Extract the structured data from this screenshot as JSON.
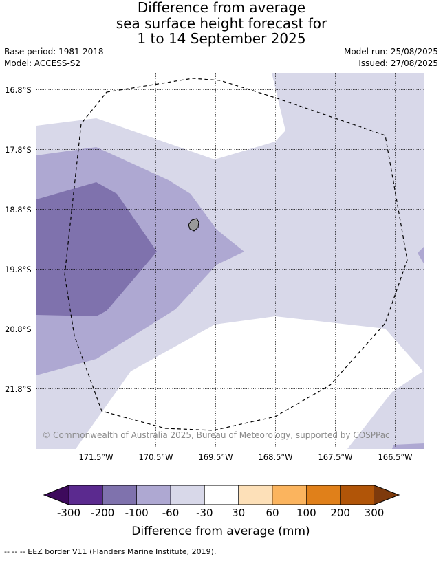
{
  "title_lines": [
    "Difference from average",
    "sea surface height forecast for",
    "1 to 14 September 2025"
  ],
  "meta": {
    "base_period": "Base period: 1981-2018",
    "model": "Model: ACCESS-S2",
    "model_run": "Model run: 25/08/2025",
    "issued": "Issued: 27/08/2025"
  },
  "map": {
    "lat_labels": [
      "16.8°S",
      "17.8°S",
      "18.8°S",
      "19.8°S",
      "20.8°S",
      "21.8°S"
    ],
    "lon_labels": [
      "171.5°W",
      "170.5°W",
      "169.5°W",
      "168.5°W",
      "167.5°W",
      "166.5°W"
    ],
    "credit": "© Commonwealth of Australia 2025, Bureau of Meteorology, supported by COSPPac",
    "island": "Niue"
  },
  "colorbar": {
    "labels": [
      "-300",
      "-200",
      "-100",
      "-60",
      "-30",
      "30",
      "60",
      "100",
      "200",
      "300"
    ],
    "colors": [
      "#3d0a5c",
      "#5b2a8f",
      "#7f72ad",
      "#aea8d2",
      "#d8d8e9",
      "#ffffff",
      "#fde0b8",
      "#fbb45e",
      "#e0801a",
      "#b15508",
      "#7e3a0c"
    ],
    "title": "Difference from average (mm)"
  },
  "footer": {
    "legend_note": "--  --  -- EEZ border V11 (Flanders Marine Institute, 2019)."
  }
}
